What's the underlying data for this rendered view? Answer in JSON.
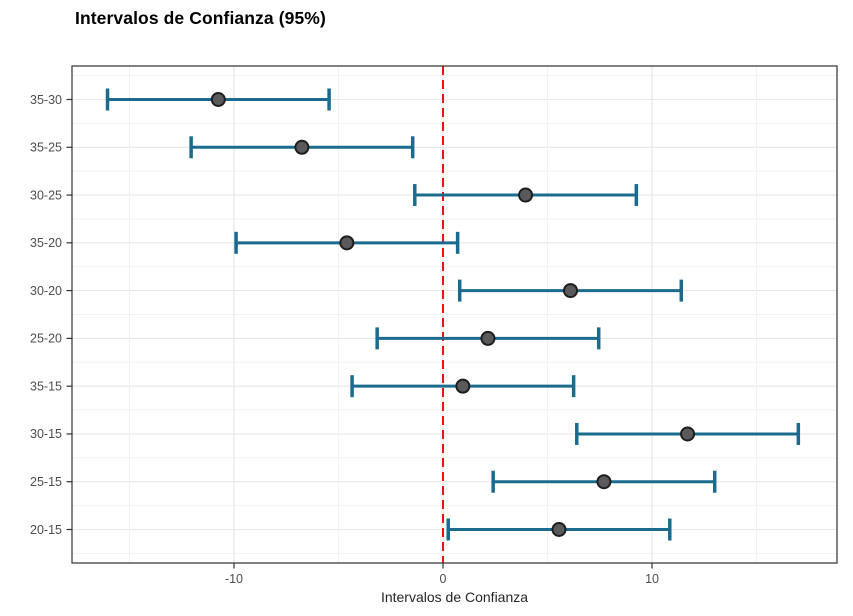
{
  "chart_data": {
    "type": "errorbar",
    "orientation": "horizontal",
    "title": "Intervalos de Confianza (95%)",
    "xlabel": "Intervalos de Confianza",
    "ylabel": "",
    "confidence_level": "95%",
    "categories": [
      "35-30",
      "35-25",
      "30-25",
      "35-20",
      "30-20",
      "25-20",
      "35-15",
      "30-15",
      "25-15",
      "20-15"
    ],
    "points": [
      {
        "pair": "35-30",
        "estimate": -10.75,
        "lower": -16.05,
        "upper": -5.45
      },
      {
        "pair": "35-25",
        "estimate": -6.75,
        "lower": -12.05,
        "upper": -1.45
      },
      {
        "pair": "30-25",
        "estimate": 3.95,
        "lower": -1.35,
        "upper": 9.25
      },
      {
        "pair": "35-20",
        "estimate": -4.6,
        "lower": -9.9,
        "upper": 0.7
      },
      {
        "pair": "30-20",
        "estimate": 6.1,
        "lower": 0.8,
        "upper": 11.4
      },
      {
        "pair": "25-20",
        "estimate": 2.15,
        "lower": -3.15,
        "upper": 7.45
      },
      {
        "pair": "35-15",
        "estimate": 0.95,
        "lower": -4.35,
        "upper": 6.25
      },
      {
        "pair": "30-15",
        "estimate": 11.7,
        "lower": 6.4,
        "upper": 17.0
      },
      {
        "pair": "25-15",
        "estimate": 7.7,
        "lower": 2.4,
        "upper": 13.0
      },
      {
        "pair": "20-15",
        "estimate": 5.55,
        "lower": 0.25,
        "upper": 10.85
      }
    ],
    "x_ticks": [
      -10,
      0,
      10
    ],
    "x_tick_labels": [
      "-10",
      "0",
      "10"
    ],
    "x_gridlines": [
      -15,
      -10,
      -5,
      0,
      5,
      10,
      15
    ],
    "xlim": [
      -17.75,
      18.85
    ],
    "reference_line": {
      "x": 0,
      "style": "dashed"
    },
    "legend": "none",
    "grid": "on",
    "colors": {
      "errorbar": "#1a6b8e",
      "point_fill": "#5a5a5c",
      "point_stroke": "#1e1e1e",
      "reference_line": "#ee1111",
      "grid_major": "#e7e7e7",
      "grid_minor": "#f2f2f2",
      "panel_border": "#3f3f3f",
      "axis_tick": "#333333",
      "tick_label": "#4d4d4d"
    }
  }
}
